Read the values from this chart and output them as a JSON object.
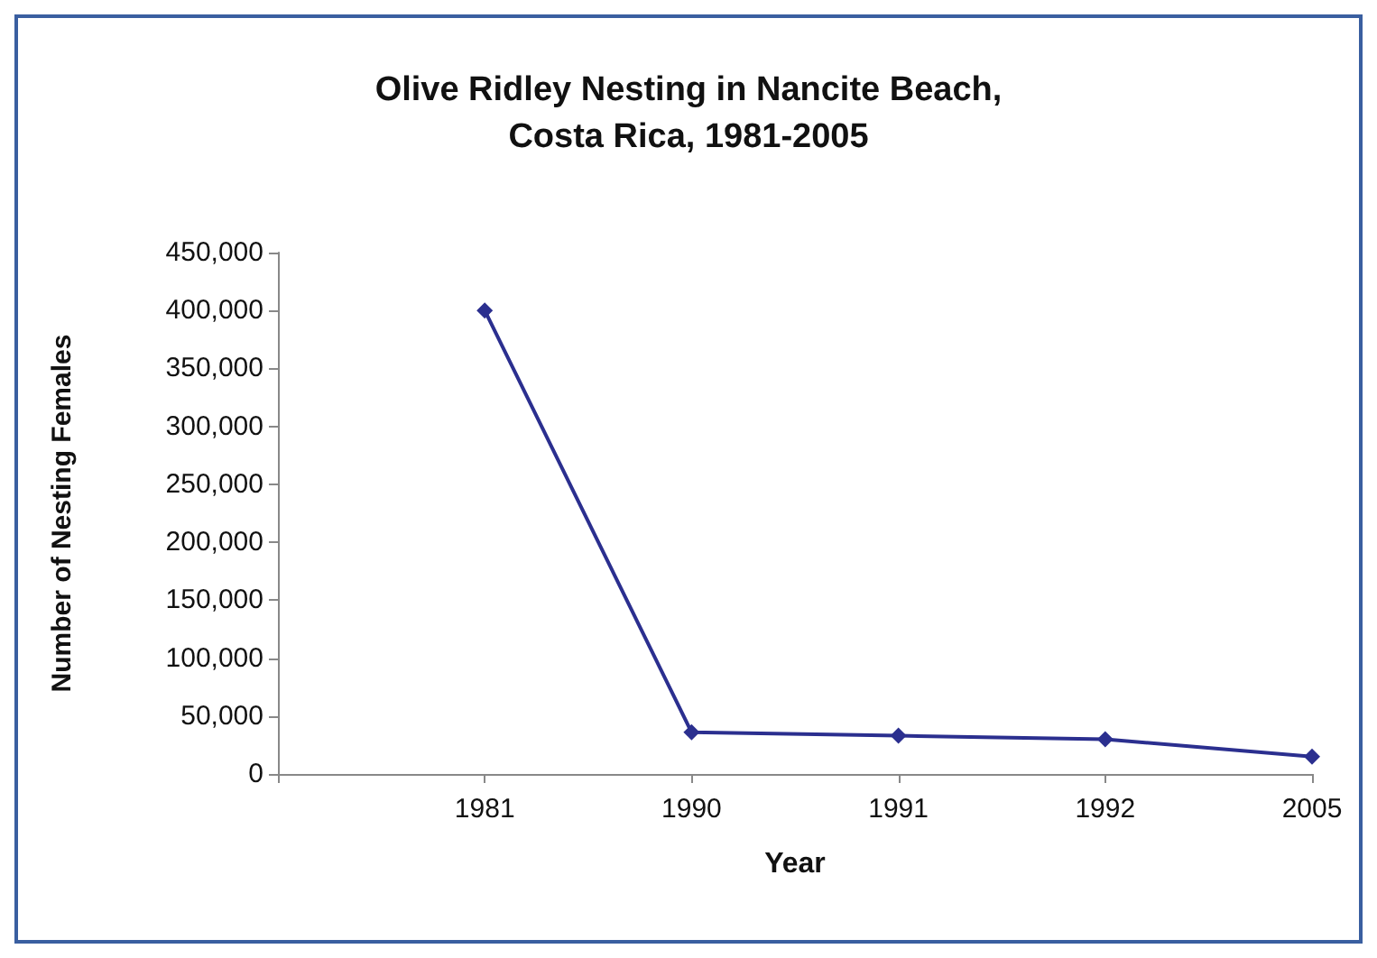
{
  "chart_data": {
    "type": "line",
    "title": "Olive Ridley Nesting in Nancite Beach,\nCosta Rica, 1981-2005",
    "xlabel": "Year",
    "ylabel": "Number of Nesting Females",
    "categories": [
      null,
      "1981",
      "1990",
      "1991",
      "1992",
      "2005"
    ],
    "series": [
      {
        "color": "#2b2f8f",
        "values": [
          null,
          400000,
          36000,
          33000,
          30000,
          15000
        ]
      }
    ],
    "ylim": [
      0,
      450000
    ],
    "yticks": [
      {
        "value": 0,
        "label": "0"
      },
      {
        "value": 50000,
        "label": "50,000"
      },
      {
        "value": 100000,
        "label": "100,000"
      },
      {
        "value": 150000,
        "label": "150,000"
      },
      {
        "value": 200000,
        "label": "200,000"
      },
      {
        "value": 250000,
        "label": "250,000"
      },
      {
        "value": 300000,
        "label": "300,000"
      },
      {
        "value": 350000,
        "label": "350,000"
      },
      {
        "value": 400000,
        "label": "400,000"
      },
      {
        "value": 450000,
        "label": "450,000"
      }
    ],
    "grid": false,
    "marker": "diamond",
    "line_style": "solid"
  }
}
